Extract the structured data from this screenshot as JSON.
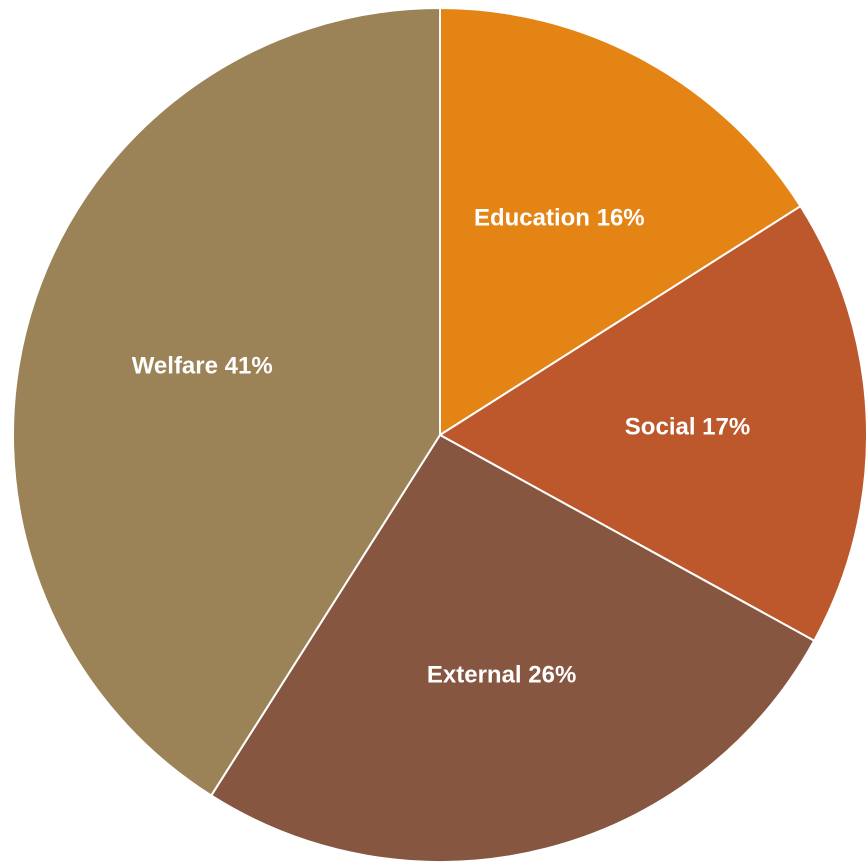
{
  "chart_data": {
    "type": "pie",
    "title": "",
    "start": "12 o'clock",
    "direction": "clockwise",
    "legend": "none",
    "slices": [
      {
        "name": "Education",
        "value": 16,
        "color": "#E48414",
        "label": "Education 16%"
      },
      {
        "name": "Social",
        "value": 17,
        "color": "#BD582C",
        "label": "Social 17%"
      },
      {
        "name": "External",
        "value": 26,
        "color": "#865640",
        "label": "External 26%"
      },
      {
        "name": "Welfare",
        "value": 41,
        "color": "#9B8357",
        "label": "Welfare 41%"
      }
    ]
  }
}
